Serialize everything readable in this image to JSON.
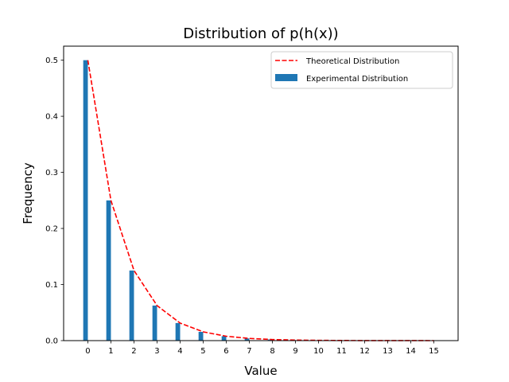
{
  "chart_data": {
    "type": "bar",
    "title": "Distribution of p(h(x))",
    "xlabel": "Value",
    "ylabel": "Frequency",
    "x": [
      0,
      1,
      2,
      3,
      4,
      5,
      6,
      7,
      8,
      9,
      10,
      11,
      12,
      13,
      14,
      15
    ],
    "xticks": [
      "0",
      "1",
      "2",
      "3",
      "4",
      "5",
      "6",
      "7",
      "8",
      "9",
      "10",
      "11",
      "12",
      "13",
      "14",
      "15"
    ],
    "yticks": [
      "0.0",
      "0.1",
      "0.2",
      "0.3",
      "0.4",
      "0.5"
    ],
    "ylim": [
      0,
      0.525
    ],
    "xlim": [
      -1.05,
      16.05
    ],
    "grid": false,
    "legend_position": "top-right",
    "series": [
      {
        "name": "Theoretical Distribution",
        "kind": "line",
        "style": "dashed",
        "color": "#ff0000",
        "x": [
          0,
          1,
          2,
          3,
          4,
          5,
          6,
          7,
          8,
          9,
          10,
          11,
          12,
          13,
          14,
          15
        ],
        "values": [
          0.5,
          0.25,
          0.125,
          0.0625,
          0.03125,
          0.015625,
          0.0078125,
          0.00390625,
          0.001953125,
          0.0009765625,
          0.00048828125,
          0.000244140625,
          0.0001220703125,
          6.103515625e-05,
          3.0517578125e-05,
          1.52587890625e-05
        ]
      },
      {
        "name": "Experimental Distribution",
        "kind": "bar",
        "color": "#1f77b4",
        "x": [
          -0.1,
          0.9,
          1.9,
          2.9,
          3.9,
          4.9,
          5.9,
          6.9,
          7.9,
          8.9,
          9.9,
          10.9,
          11.9,
          12.9,
          13.9,
          14.9
        ],
        "values": [
          0.5,
          0.25,
          0.125,
          0.0625,
          0.0313,
          0.0156,
          0.0078,
          0.0039,
          0.002,
          0.001,
          0.0005,
          0.0002,
          0.0001,
          0.0001,
          0.0,
          0.0
        ]
      }
    ]
  }
}
